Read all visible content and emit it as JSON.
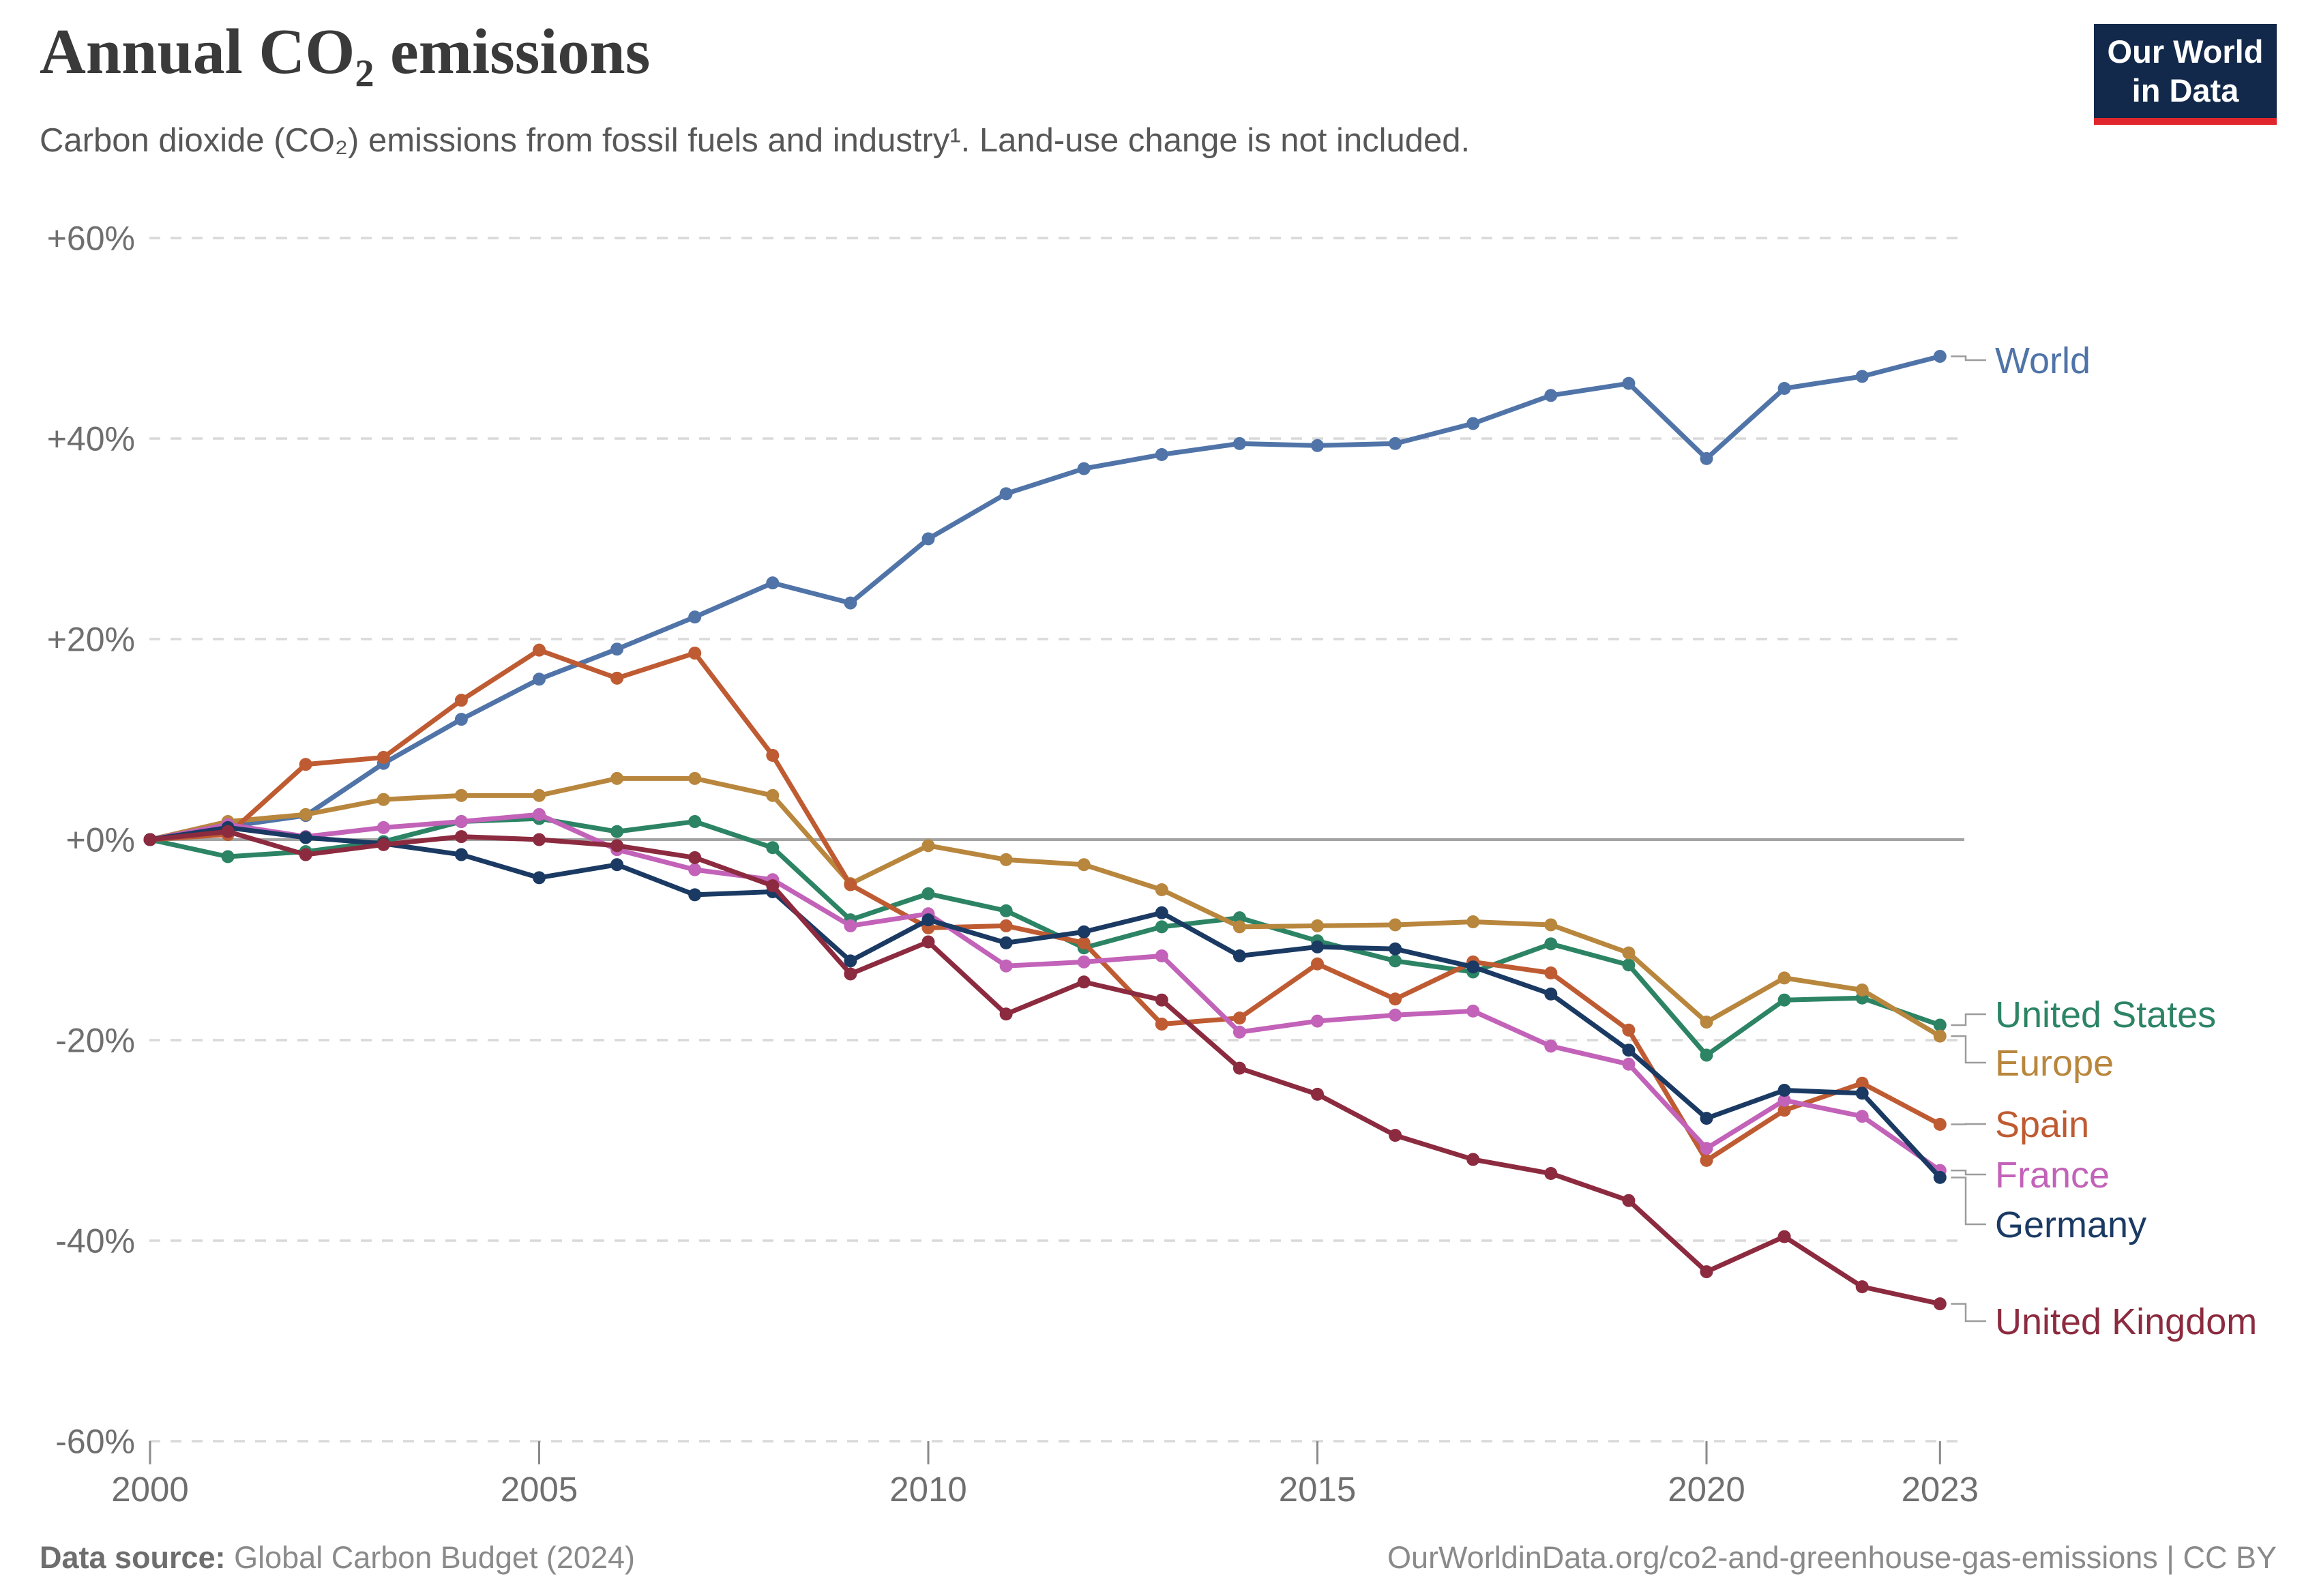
{
  "header": {
    "title": "Annual CO₂ emissions",
    "subtitle": "Carbon dioxide (CO₂) emissions from fossil fuels and industry¹. Land-use change is not included."
  },
  "logo": {
    "line1": "Our World",
    "line2": "in Data",
    "bg": "#12294B",
    "bar": "#E0262C"
  },
  "footer": {
    "source_label": "Data source:",
    "source_name": "Global Carbon Budget (2024)",
    "right": "OurWorldinData.org/co2-and-greenhouse-gas-emissions | CC BY"
  },
  "colors": {
    "grid": "#D9D9D9",
    "zero_line": "#A3A3A3",
    "axis_text": "#6F6F6F",
    "tick": "#8A8A8A",
    "connector": "#9C9C9C",
    "title": "#3A3A3A",
    "subtitle": "#575757",
    "footer": "#8A8A8A"
  },
  "chart_data": {
    "type": "line",
    "title": "Annual CO₂ emissions",
    "xlabel": "",
    "ylabel": "",
    "ylim": [
      -60,
      60
    ],
    "grid": "horizontal-dashed",
    "zero_line": true,
    "legend_position": "right-edge-labels",
    "x": [
      2000,
      2001,
      2002,
      2003,
      2004,
      2005,
      2006,
      2007,
      2008,
      2009,
      2010,
      2011,
      2012,
      2013,
      2014,
      2015,
      2016,
      2017,
      2018,
      2019,
      2020,
      2021,
      2022,
      2023
    ],
    "xticks": [
      2000,
      2005,
      2010,
      2015,
      2020,
      2023
    ],
    "yticks": [
      {
        "value": 60,
        "label": "+60%"
      },
      {
        "value": 40,
        "label": "+40%"
      },
      {
        "value": 20,
        "label": "+20%"
      },
      {
        "value": 0,
        "label": "+0%"
      },
      {
        "value": -20,
        "label": "-20%"
      },
      {
        "value": -40,
        "label": "-40%"
      },
      {
        "value": -60,
        "label": "-60%"
      }
    ],
    "series": [
      {
        "name": "World",
        "color": "#5074A8",
        "label_y": 528,
        "values": [
          0,
          1.3,
          2.4,
          7.6,
          12.0,
          16.0,
          19.0,
          22.2,
          25.6,
          23.6,
          30.0,
          34.5,
          37.0,
          38.4,
          39.5,
          39.3,
          39.5,
          41.5,
          44.3,
          45.5,
          38.0,
          45.0,
          46.2,
          48.2
        ]
      },
      {
        "name": "United States",
        "color": "#2C8465",
        "label_y": 1487,
        "values": [
          0,
          -1.7,
          -1.2,
          -0.2,
          1.8,
          2.1,
          0.8,
          1.8,
          -0.8,
          -8.0,
          -5.4,
          -7.1,
          -10.8,
          -8.7,
          -7.8,
          -10.1,
          -12.1,
          -13.2,
          -10.4,
          -12.5,
          -21.5,
          -16.0,
          -15.8,
          -18.5
        ]
      },
      {
        "name": "Europe",
        "color": "#B8863D",
        "label_y": 1558,
        "values": [
          0,
          1.8,
          2.5,
          4.0,
          4.4,
          4.4,
          6.1,
          6.1,
          4.4,
          -4.4,
          -0.6,
          -2.0,
          -2.5,
          -5.0,
          -8.7,
          -8.6,
          -8.5,
          -8.2,
          -8.5,
          -11.3,
          -18.2,
          -13.8,
          -15.0,
          -19.6
        ]
      },
      {
        "name": "Spain",
        "color": "#BF5B32",
        "label_y": 1648,
        "values": [
          0,
          0.5,
          7.5,
          8.2,
          13.9,
          18.9,
          16.1,
          18.6,
          8.4,
          -4.5,
          -8.8,
          -8.6,
          -10.3,
          -18.4,
          -17.8,
          -12.4,
          -15.9,
          -12.2,
          -13.3,
          -19.0,
          -32.0,
          -27.0,
          -24.3,
          -28.4
        ]
      },
      {
        "name": "France",
        "color": "#C262B8",
        "label_y": 1722,
        "values": [
          0,
          1.5,
          0.3,
          1.2,
          1.8,
          2.5,
          -1.0,
          -3.0,
          -4.0,
          -8.6,
          -7.4,
          -12.6,
          -12.2,
          -11.6,
          -19.2,
          -18.1,
          -17.5,
          -17.1,
          -20.6,
          -22.4,
          -30.8,
          -26.0,
          -27.6,
          -33.0
        ]
      },
      {
        "name": "Germany",
        "color": "#1A3A63",
        "label_y": 1795,
        "values": [
          0,
          1.2,
          0.2,
          -0.4,
          -1.5,
          -3.8,
          -2.5,
          -5.5,
          -5.2,
          -12.1,
          -8.0,
          -10.3,
          -9.2,
          -7.3,
          -11.6,
          -10.7,
          -10.9,
          -12.7,
          -15.4,
          -21.0,
          -27.8,
          -25.0,
          -25.3,
          -33.7
        ]
      },
      {
        "name": "United Kingdom",
        "color": "#8C2B3F",
        "label_y": 1937,
        "values": [
          0,
          0.8,
          -1.5,
          -0.5,
          0.3,
          0.0,
          -0.6,
          -1.8,
          -4.6,
          -13.4,
          -10.2,
          -17.4,
          -14.2,
          -16.0,
          -22.8,
          -25.4,
          -29.5,
          -31.9,
          -33.3,
          -36.0,
          -43.1,
          -39.6,
          -44.6,
          -46.3
        ]
      }
    ]
  }
}
